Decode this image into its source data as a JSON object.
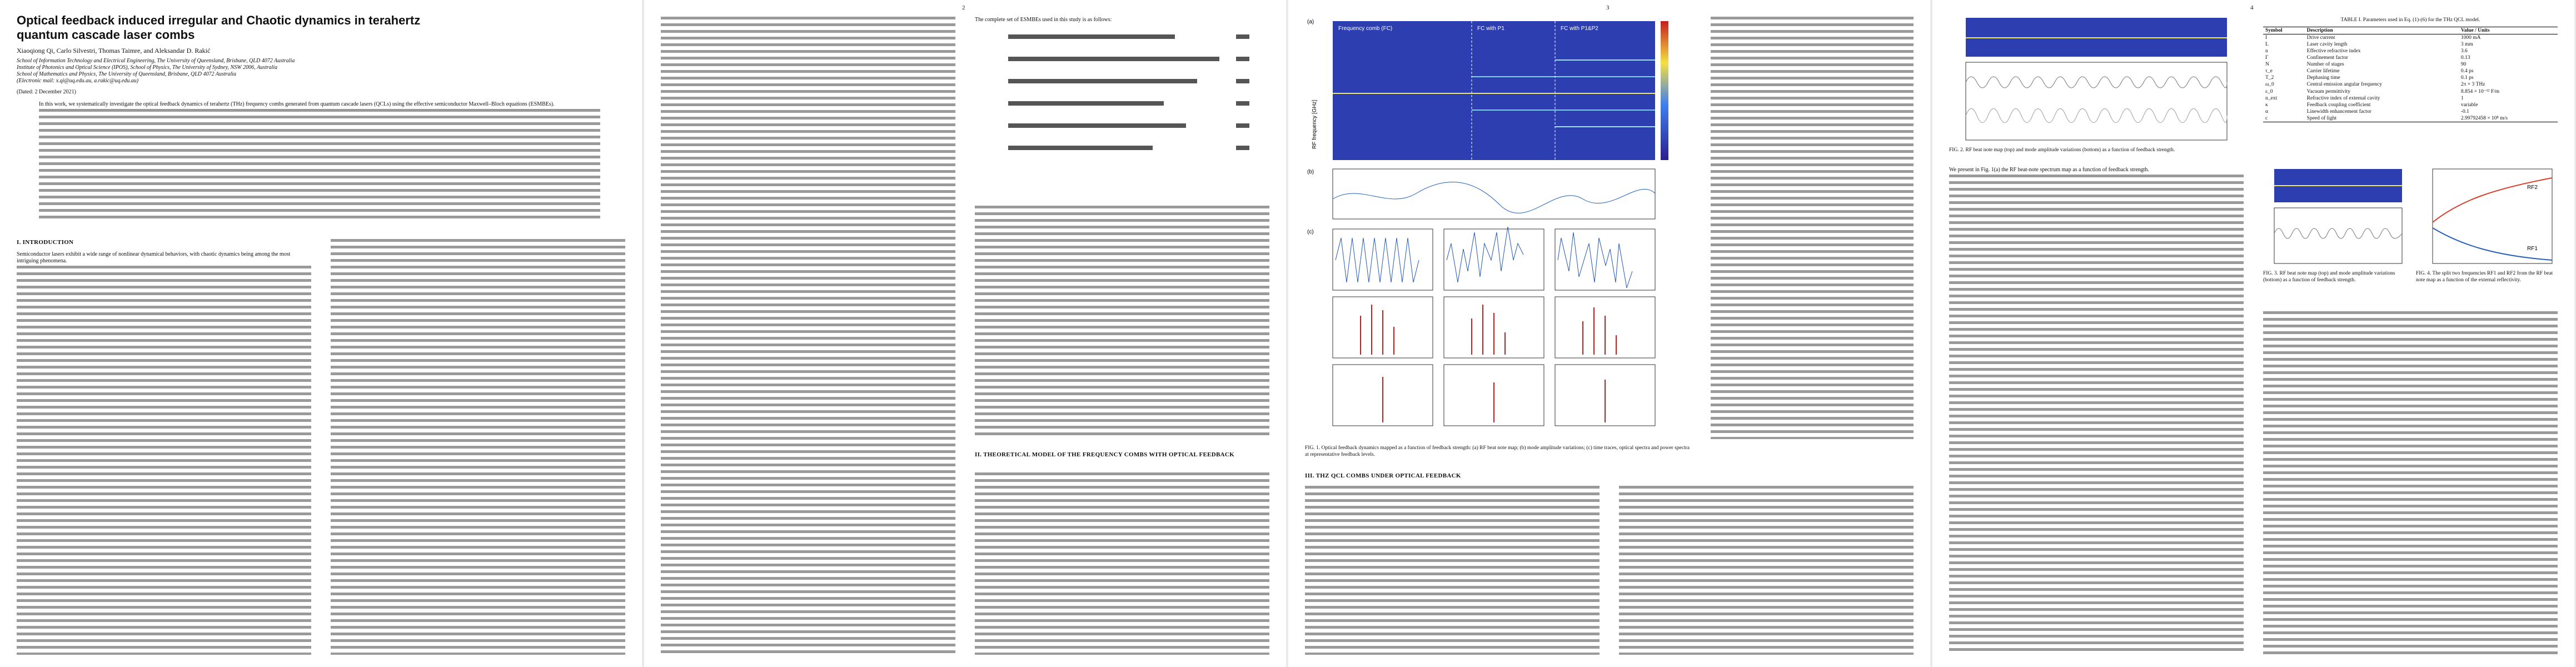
{
  "page1": {
    "title": "Optical feedback induced irregular and Chaotic dynamics in terahertz quantum cascade laser combs",
    "authors": "Xiaoqiong Qi, Carlo Silvestri, Thomas Taimre, and Aleksandar D. Rakić",
    "affiliations": [
      "School of Information Technology and Electrical Engineering, The University of Queensland, Brisbane, QLD 4072 Australia",
      "Institute of Photonics and Optical Science (IPOS), School of Physics, The University of Sydney, NSW 2006, Australia",
      "School of Mathematics and Physics, The University of Queensland, Brisbane, QLD 4072 Australia",
      "(Electronic mail: x.qi@uq.edu.au, a.rakic@uq.edu.au)"
    ],
    "date": "(Dated: 2 December 2021)",
    "abstract_start": "In this work, we systematically investigate the optical feedback dynamics of terahertz (THz) frequency combs generated from quantum cascade lasers (QCLs) using the effective semiconductor Maxwell–Bloch equations (ESMBEs).",
    "section": "I. INTRODUCTION",
    "intro_start": "Semiconductor lasers exhibit a wide range of nonlinear dynamical behaviors, with chaotic dynamics being among the most intriguing phenomena."
  },
  "page2": {
    "number": "2",
    "equations_intro": "The complete set of ESMBEs used in this study is as follows:",
    "section": "II. THEORETICAL MODEL OF THE FREQUENCY COMBS WITH OPTICAL FEEDBACK"
  },
  "page3": {
    "number": "3",
    "figure_labels": [
      "(a)",
      "(b)",
      "(c)",
      "RF frequency [GHz]",
      "Frequency comb (FC)",
      "FC with P1",
      "FC with P1&P2"
    ],
    "caption": "FIG. 1. Optical feedback dynamics mapped as a function of feedback strength: (a) RF beat note map; (b) mode amplitude variations; (c) time traces, optical spectra and power spectra at representative feedback levels.",
    "section": "III. THZ QCL COMBS UNDER OPTICAL FEEDBACK"
  },
  "page4": {
    "number": "4",
    "text_start": "We present in Fig. 1(a) the RF beat-note spectrum map as a function of feedback strength.",
    "fig2_caption": "FIG. 2. RF beat note map (top) and mode amplitude variations (bottom) as a function of feedback strength.",
    "fig3_caption": "FIG. 3. RF beat note map (top) and mode amplitude variations (bottom) as a function of feedback strength.",
    "fig4_caption": "FIG. 4. The split two frequencies RF1 and RF2 from the RF beat note map as a function of the external reflectivity.",
    "fig4_labels": [
      "RF2",
      "RF1"
    ],
    "table": {
      "title": "TABLE I. Parameters used in Eq. (1)-(6) for the THz QCL model.",
      "header": [
        "Symbol",
        "Description",
        "Value / Units"
      ],
      "rows": [
        [
          "I",
          "Drive current",
          "1000 mA"
        ],
        [
          "L",
          "Laser cavity length",
          "3 mm"
        ],
        [
          "n",
          "Effective refractive index",
          "3.6"
        ],
        [
          "Γ",
          "Confinement factor",
          "0.13"
        ],
        [
          "N",
          "Number of stages",
          "90"
        ],
        [
          "τ_e",
          "Carrier lifetime",
          "0.4 ps"
        ],
        [
          "T_2",
          "Dephasing time",
          "0.1 ps"
        ],
        [
          "ω_0",
          "Central emission angular frequency",
          "2π × 3 THz"
        ],
        [
          "ε_0",
          "Vacuum permittivity",
          "8.854 × 10⁻¹² F/m"
        ],
        [
          "n_ext",
          "Refractive index of external cavity",
          "1"
        ],
        [
          "κ",
          "Feedback coupling coefficient",
          "variable"
        ],
        [
          "α",
          "Linewidth enhancement factor",
          "-0.1"
        ],
        [
          "c",
          "Speed of light",
          "2.99792458 × 10⁸ m/s"
        ]
      ]
    }
  }
}
